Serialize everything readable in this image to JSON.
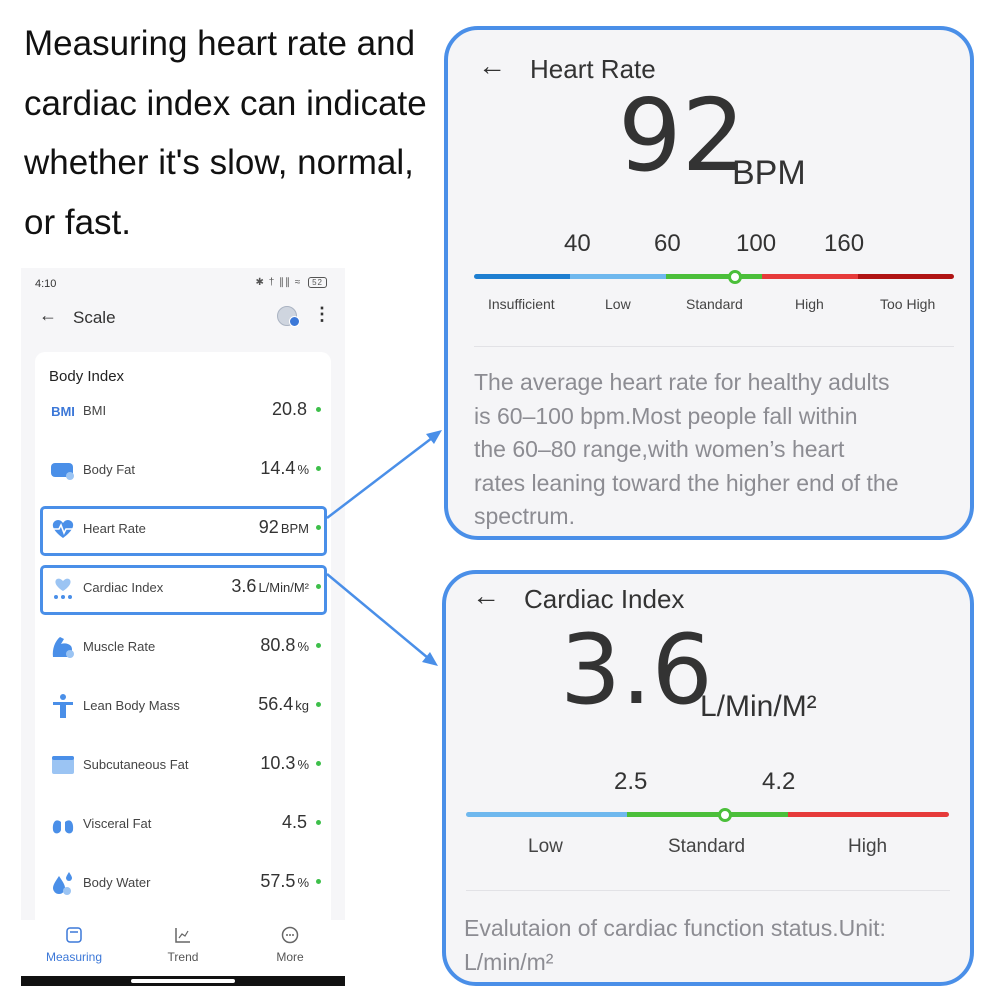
{
  "headline": "Measuring heart rate and cardiac index can indicate whether it's slow, normal, or fast.",
  "phone": {
    "status_time": "4:10",
    "status_icons": "✱ † ∥∥ ≈",
    "battery": "52",
    "app_title": "Scale",
    "card_title": "Body Index",
    "metrics": [
      {
        "label": "BMI",
        "value": "20.8",
        "unit": "",
        "icon": "bmi-icon"
      },
      {
        "label": "Body Fat",
        "value": "14.4",
        "unit": "%",
        "icon": "body-fat-icon"
      },
      {
        "label": "Heart Rate",
        "value": "92",
        "unit": "BPM",
        "icon": "heart-rate-icon"
      },
      {
        "label": "Cardiac Index",
        "value": "3.6",
        "unit": "L/Min/M²",
        "icon": "cardiac-index-icon"
      },
      {
        "label": "Muscle Rate",
        "value": "80.8",
        "unit": "%",
        "icon": "muscle-icon"
      },
      {
        "label": "Lean Body Mass",
        "value": "56.4",
        "unit": "kg",
        "icon": "lean-body-icon"
      },
      {
        "label": "Subcutaneous Fat",
        "value": "10.3",
        "unit": "%",
        "icon": "subcutaneous-fat-icon"
      },
      {
        "label": "Visceral Fat",
        "value": "4.5",
        "unit": "",
        "icon": "visceral-fat-icon"
      },
      {
        "label": "Body Water",
        "value": "57.5",
        "unit": "%",
        "icon": "body-water-icon"
      }
    ],
    "bmi_badge": "BMI",
    "nav": [
      {
        "label": "Measuring",
        "active": true
      },
      {
        "label": "Trend",
        "active": false
      },
      {
        "label": "More",
        "active": false
      }
    ]
  },
  "heart_panel": {
    "title": "Heart Rate",
    "value": "92",
    "unit": "BPM",
    "ticks": [
      "40",
      "60",
      "100",
      "160"
    ],
    "categories": [
      "Insufficient",
      "Low",
      "Standard",
      "High",
      "Too High"
    ],
    "description_lines": [
      "The average heart rate for healthy adults",
      "is 60–100 bpm.Most people fall within",
      "the 60–80 range,with women’s heart",
      "rates leaning toward the higher end of the",
      "spectrum."
    ],
    "colors": [
      "#1e7fd1",
      "#6fb8ee",
      "#4bbf3a",
      "#e63a3a",
      "#b01414"
    ]
  },
  "cardiac_panel": {
    "title": "Cardiac Index",
    "value": "3.6",
    "unit": "L/Min/M²",
    "ticks": [
      "2.5",
      "4.2"
    ],
    "categories": [
      "Low",
      "Standard",
      "High"
    ],
    "description_lines": [
      "Evalutaion of cardiac function status.Unit:",
      "L/min/m²"
    ],
    "colors": [
      "#6fb8ee",
      "#4bbf3a",
      "#e63a3a"
    ]
  },
  "accent": "#4a8fe8"
}
